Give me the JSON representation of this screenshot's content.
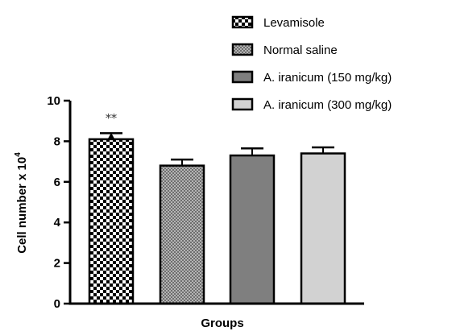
{
  "chart_data": {
    "type": "bar",
    "categories": [
      "Levamisole",
      "Normal saline",
      "A. iranicum (150 mg/kg)",
      "A. iranicum (300 mg/kg)"
    ],
    "series": [
      {
        "values": [
          8.1,
          6.8,
          7.3,
          7.4
        ],
        "errors": [
          0.3,
          0.3,
          0.35,
          0.3
        ],
        "patterns": [
          "checker",
          "dots",
          "solid",
          "solid"
        ],
        "fills": [
          "#000000",
          "#9a9a9a",
          "#7f7f7f",
          "#d2d2d2"
        ]
      }
    ],
    "annotations": [
      {
        "category": "Levamisole",
        "text": "**"
      }
    ],
    "xlabel": "Groups",
    "ylabel_main": "Cell number x 10",
    "ylabel_sup": "4",
    "ylim": [
      0,
      10
    ],
    "yticks": [
      0,
      2,
      4,
      6,
      8,
      10
    ],
    "legend": {
      "position": "top-right",
      "entries": [
        "Levamisole",
        "Normal saline",
        "A. iranicum (150 mg/kg)",
        "A. iranicum (300 mg/kg)"
      ]
    },
    "grid": false
  }
}
